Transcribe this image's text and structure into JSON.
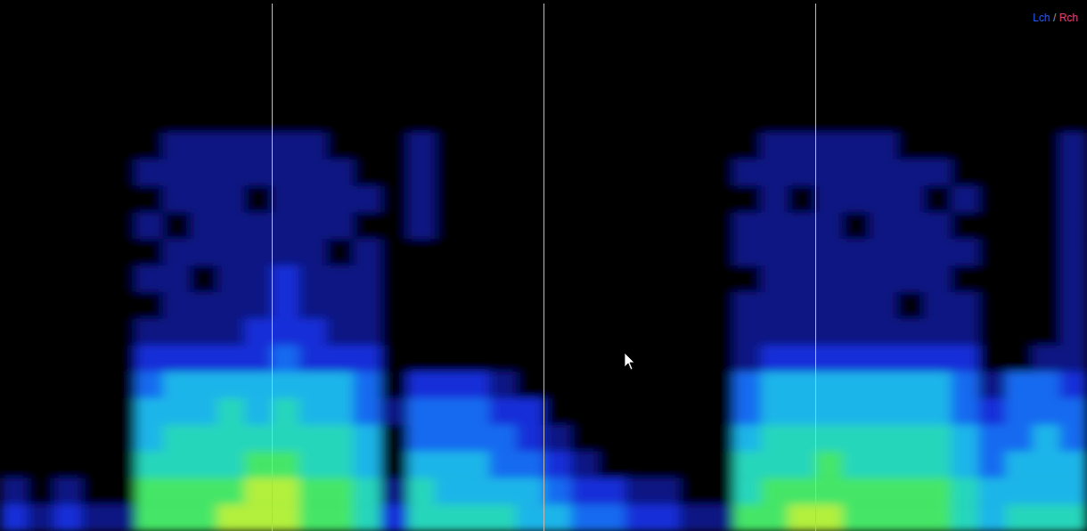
{
  "chart_data": {
    "type": "spectrogram",
    "channels": [
      {
        "name": "Lch",
        "color": "#2a5bd8"
      },
      {
        "name": "Rch",
        "color": "#e0407a"
      }
    ],
    "separator": "/",
    "xlim": [
      0,
      4
    ],
    "xticks": [
      1,
      2,
      3
    ],
    "grid": true,
    "tick_labels": false,
    "zlim": [
      0,
      9
    ],
    "cells": [
      [
        0,
        0,
        0,
        0,
        0,
        0,
        0,
        0,
        0,
        0,
        0,
        0,
        0,
        0,
        0,
        0,
        0,
        0,
        0,
        0,
        0,
        0,
        0,
        0,
        0,
        0,
        0,
        0,
        0,
        0,
        0,
        0,
        0,
        0,
        0,
        0,
        0,
        0,
        0,
        0
      ],
      [
        0,
        0,
        0,
        0,
        0,
        0,
        0,
        0,
        0,
        0,
        0,
        0,
        0,
        0,
        0,
        0,
        0,
        0,
        0,
        0,
        0,
        0,
        0,
        0,
        0,
        0,
        0,
        0,
        0,
        0,
        0,
        0,
        0,
        0,
        0,
        0,
        0,
        0,
        0,
        0
      ],
      [
        0,
        0,
        0,
        0,
        0,
        0,
        0,
        0,
        0,
        0,
        0,
        0,
        0,
        0,
        0,
        0,
        0,
        0,
        0,
        0,
        0,
        0,
        0,
        0,
        0,
        0,
        0,
        0,
        0,
        0,
        0,
        0,
        0,
        0,
        0,
        0,
        0,
        0,
        0,
        0
      ],
      [
        0,
        0,
        0,
        0,
        0,
        0,
        0,
        0,
        0,
        0,
        0,
        0,
        0,
        0,
        0,
        0,
        0,
        0,
        0,
        0,
        0,
        0,
        0,
        0,
        0,
        0,
        0,
        0,
        0,
        0,
        0,
        0,
        0,
        0,
        0,
        0,
        0,
        0,
        0,
        0
      ],
      [
        0,
        0,
        0,
        0,
        0,
        0,
        0,
        0,
        0,
        0,
        0,
        0,
        0,
        0,
        0,
        0,
        0,
        0,
        0,
        0,
        0,
        0,
        0,
        0,
        0,
        0,
        0,
        0,
        0,
        0,
        0,
        0,
        0,
        0,
        0,
        0,
        0,
        0,
        0,
        0
      ],
      [
        0,
        0,
        0,
        0,
        0,
        0,
        1,
        1,
        1,
        1,
        1,
        1,
        0,
        0,
        0,
        1,
        0,
        0,
        0,
        0,
        0,
        0,
        0,
        0,
        0,
        0,
        0,
        0,
        1,
        1,
        1,
        1,
        1,
        0,
        0,
        0,
        0,
        0,
        0,
        1
      ],
      [
        0,
        0,
        0,
        0,
        0,
        1,
        1,
        1,
        1,
        1,
        1,
        1,
        1,
        0,
        0,
        1,
        0,
        0,
        0,
        0,
        0,
        0,
        0,
        0,
        0,
        0,
        0,
        1,
        1,
        1,
        1,
        1,
        1,
        1,
        1,
        0,
        0,
        0,
        0,
        1
      ],
      [
        0,
        0,
        0,
        0,
        0,
        0,
        1,
        1,
        1,
        0,
        1,
        1,
        1,
        1,
        0,
        1,
        0,
        0,
        0,
        0,
        0,
        0,
        0,
        0,
        0,
        0,
        0,
        0,
        1,
        0,
        1,
        1,
        1,
        1,
        0,
        1,
        0,
        0,
        0,
        1
      ],
      [
        0,
        0,
        0,
        0,
        0,
        1,
        0,
        1,
        1,
        1,
        1,
        1,
        1,
        0,
        0,
        1,
        0,
        0,
        0,
        0,
        0,
        0,
        0,
        0,
        0,
        0,
        0,
        1,
        1,
        1,
        1,
        0,
        1,
        1,
        1,
        0,
        0,
        0,
        0,
        1
      ],
      [
        0,
        0,
        0,
        0,
        0,
        0,
        1,
        1,
        1,
        1,
        1,
        1,
        0,
        1,
        0,
        0,
        0,
        0,
        0,
        0,
        0,
        0,
        0,
        0,
        0,
        0,
        0,
        1,
        1,
        1,
        1,
        1,
        1,
        1,
        1,
        1,
        0,
        0,
        0,
        1
      ],
      [
        0,
        0,
        0,
        0,
        0,
        1,
        1,
        0,
        1,
        1,
        2,
        1,
        1,
        1,
        0,
        0,
        0,
        0,
        0,
        0,
        0,
        0,
        0,
        0,
        0,
        0,
        0,
        0,
        1,
        1,
        1,
        1,
        1,
        1,
        1,
        0,
        0,
        0,
        0,
        1
      ],
      [
        0,
        0,
        0,
        0,
        0,
        0,
        1,
        1,
        1,
        1,
        2,
        1,
        1,
        1,
        0,
        0,
        0,
        0,
        0,
        0,
        0,
        0,
        0,
        0,
        0,
        0,
        0,
        1,
        1,
        1,
        1,
        1,
        1,
        0,
        1,
        1,
        0,
        0,
        0,
        1
      ],
      [
        0,
        0,
        0,
        0,
        0,
        1,
        1,
        1,
        1,
        2,
        2,
        2,
        1,
        1,
        0,
        0,
        0,
        0,
        0,
        0,
        0,
        0,
        0,
        0,
        0,
        0,
        0,
        1,
        1,
        1,
        1,
        1,
        1,
        1,
        1,
        1,
        0,
        0,
        0,
        1
      ],
      [
        0,
        0,
        0,
        0,
        0,
        2,
        2,
        2,
        2,
        2,
        3,
        2,
        2,
        2,
        0,
        0,
        0,
        0,
        0,
        0,
        0,
        0,
        0,
        0,
        0,
        0,
        0,
        1,
        2,
        2,
        2,
        2,
        2,
        2,
        2,
        2,
        0,
        0,
        1,
        1
      ],
      [
        0,
        0,
        0,
        0,
        0,
        3,
        4,
        4,
        4,
        4,
        4,
        4,
        4,
        3,
        0,
        2,
        2,
        2,
        1,
        0,
        0,
        0,
        0,
        0,
        0,
        0,
        0,
        3,
        4,
        4,
        4,
        4,
        4,
        4,
        4,
        3,
        1,
        3,
        3,
        2
      ],
      [
        0,
        0,
        0,
        0,
        0,
        4,
        4,
        4,
        5,
        4,
        5,
        4,
        4,
        3,
        1,
        3,
        3,
        3,
        2,
        2,
        0,
        0,
        0,
        0,
        0,
        0,
        0,
        3,
        4,
        4,
        4,
        4,
        4,
        4,
        4,
        3,
        2,
        3,
        3,
        3
      ],
      [
        0,
        0,
        0,
        0,
        0,
        4,
        5,
        5,
        5,
        5,
        5,
        5,
        5,
        4,
        0,
        3,
        3,
        3,
        3,
        2,
        1,
        0,
        0,
        0,
        0,
        0,
        0,
        4,
        5,
        5,
        5,
        5,
        5,
        5,
        5,
        4,
        3,
        3,
        4,
        3
      ],
      [
        0,
        0,
        0,
        0,
        0,
        5,
        5,
        5,
        5,
        6,
        6,
        5,
        5,
        4,
        0,
        4,
        4,
        4,
        3,
        3,
        2,
        1,
        0,
        0,
        0,
        0,
        0,
        5,
        5,
        5,
        6,
        5,
        5,
        5,
        5,
        4,
        3,
        4,
        4,
        4
      ],
      [
        1,
        0,
        1,
        0,
        0,
        6,
        6,
        6,
        6,
        7,
        7,
        6,
        6,
        5,
        1,
        5,
        4,
        4,
        4,
        4,
        3,
        2,
        2,
        1,
        1,
        0,
        0,
        5,
        6,
        6,
        6,
        6,
        6,
        6,
        6,
        5,
        4,
        4,
        4,
        4
      ],
      [
        2,
        1,
        2,
        1,
        1,
        6,
        6,
        6,
        7,
        7,
        7,
        6,
        6,
        5,
        2,
        5,
        5,
        5,
        5,
        4,
        4,
        3,
        3,
        2,
        2,
        1,
        1,
        6,
        6,
        7,
        7,
        6,
        6,
        6,
        6,
        5,
        4,
        5,
        5,
        5
      ]
    ]
  }
}
